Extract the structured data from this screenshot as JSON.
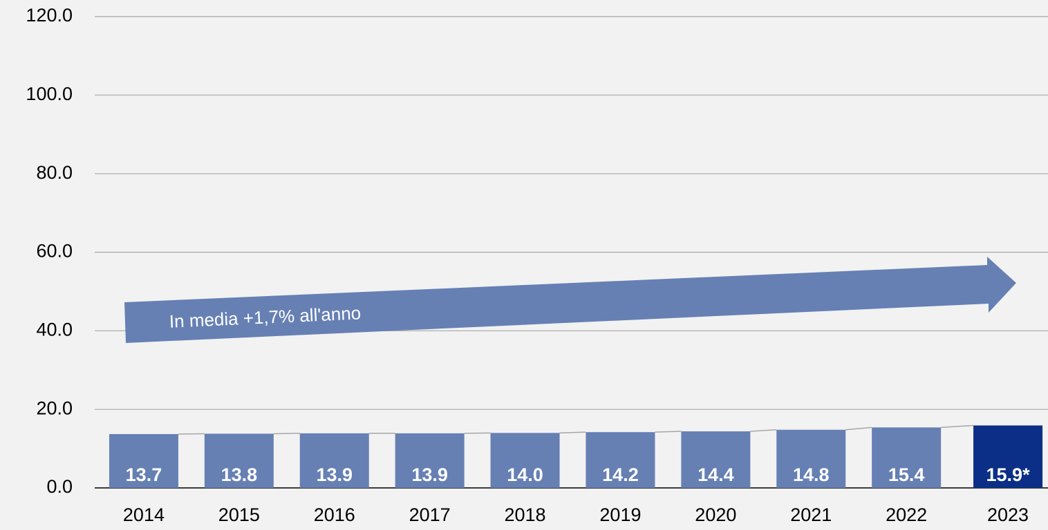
{
  "chart_data": {
    "type": "bar",
    "categories": [
      "2014",
      "2015",
      "2016",
      "2017",
      "2018",
      "2019",
      "2020",
      "2021",
      "2022",
      "2023"
    ],
    "values": [
      13.7,
      13.8,
      13.9,
      13.9,
      14.0,
      14.2,
      14.4,
      14.8,
      15.4,
      15.9
    ],
    "value_labels": [
      "13.7",
      "13.8",
      "13.9",
      "13.9",
      "14.0",
      "14.2",
      "14.4",
      "14.8",
      "15.4",
      "15.9*"
    ],
    "colors": [
      "#6680b4",
      "#6680b4",
      "#6680b4",
      "#6680b4",
      "#6680b4",
      "#6680b4",
      "#6680b4",
      "#6680b4",
      "#6680b4",
      "#0b2f86"
    ],
    "ylim": [
      0,
      120
    ],
    "yticks": [
      {
        "value": 0,
        "label": "0.0"
      },
      {
        "value": 20,
        "label": "20.0"
      },
      {
        "value": 40,
        "label": "40.0"
      },
      {
        "value": 60,
        "label": "60.0"
      },
      {
        "value": 80,
        "label": "80.0"
      },
      {
        "value": 100,
        "label": "100.0"
      },
      {
        "value": 120,
        "label": "120.0"
      }
    ],
    "grid": true,
    "annotation": "In media +1,7% all'anno"
  }
}
